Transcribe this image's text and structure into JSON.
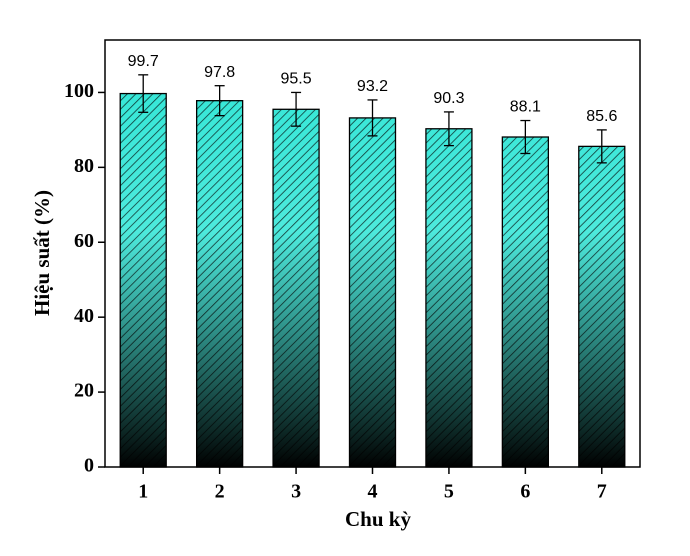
{
  "chart_data": {
    "type": "bar",
    "x_label": "Chu kỳ",
    "y_label": "Hiệu suất (%)",
    "categories": [
      "1",
      "2",
      "3",
      "4",
      "5",
      "6",
      "7"
    ],
    "values": [
      99.7,
      97.8,
      95.5,
      93.2,
      90.3,
      88.1,
      85.6
    ],
    "errors": [
      5,
      4,
      4.5,
      4.8,
      4.5,
      4.4,
      4.4
    ],
    "color": "#2ee6d6",
    "ylim": [
      0,
      114
    ],
    "yticks": [
      0,
      20,
      40,
      60,
      80,
      100
    ]
  }
}
